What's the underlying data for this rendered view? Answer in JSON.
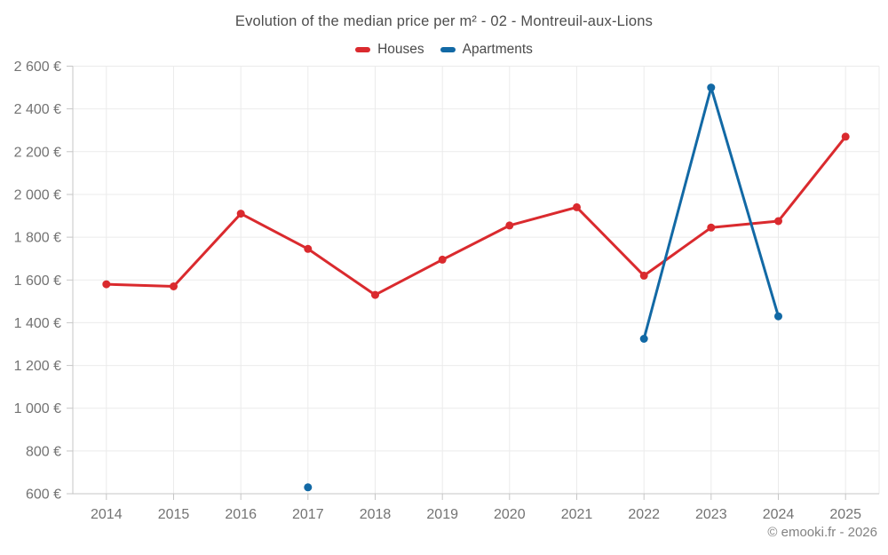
{
  "chart_data": {
    "type": "line",
    "title": "Evolution of the median price per m² - 02 - Montreuil-aux-Lions",
    "categories": [
      "2014",
      "2015",
      "2016",
      "2017",
      "2018",
      "2019",
      "2020",
      "2021",
      "2022",
      "2023",
      "2024",
      "2025"
    ],
    "series": [
      {
        "name": "Houses",
        "color": "#da2a2e",
        "values": [
          1580,
          1570,
          1910,
          1745,
          1530,
          1695,
          1855,
          1940,
          1620,
          1845,
          1875,
          2270
        ]
      },
      {
        "name": "Apartments",
        "color": "#1269a5",
        "values": [
          null,
          null,
          null,
          630,
          null,
          null,
          null,
          null,
          1325,
          2500,
          1430,
          null
        ]
      }
    ],
    "ylim": [
      600,
      2600
    ],
    "y_ticks": [
      {
        "value": 600,
        "label": "600 €"
      },
      {
        "value": 800,
        "label": "800 €"
      },
      {
        "value": 1000,
        "label": "1 000 €"
      },
      {
        "value": 1200,
        "label": "1 200 €"
      },
      {
        "value": 1400,
        "label": "1 400 €"
      },
      {
        "value": 1600,
        "label": "1 600 €"
      },
      {
        "value": 1800,
        "label": "1 800 €"
      },
      {
        "value": 2000,
        "label": "2 000 €"
      },
      {
        "value": 2200,
        "label": "2 200 €"
      },
      {
        "value": 2400,
        "label": "2 400 €"
      },
      {
        "value": 2600,
        "label": "2 600 €"
      }
    ],
    "grid": true,
    "legend_position": "top",
    "colors": {
      "gridline": "#ebebeb",
      "axis": "#c6c6c6",
      "axis_text": "#737373"
    }
  },
  "footer": {
    "copyright": "© emooki.fr - 2026"
  }
}
